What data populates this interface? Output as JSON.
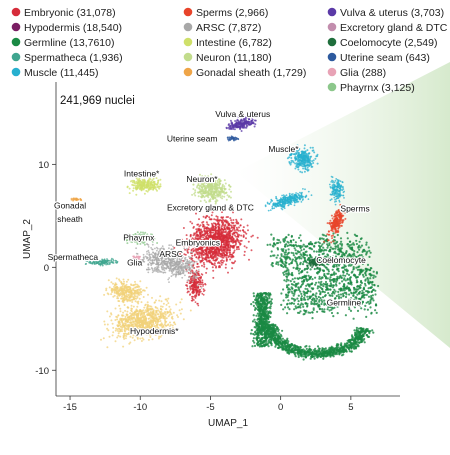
{
  "chart_data": {
    "type": "scatter",
    "xlabel": "UMAP_1",
    "ylabel": "UMAP_2",
    "xlim": [
      -16,
      8.5
    ],
    "ylim": [
      -12.5,
      18
    ],
    "xticks": [
      -15,
      -10,
      -5,
      0,
      5
    ],
    "yticks": [
      -10,
      0,
      10
    ],
    "grid": false,
    "legend_placement": "top",
    "annotation_total": "241,969 nuclei",
    "legend": [
      {
        "label": "Embryonic (31,078)",
        "color": "#d62c3a"
      },
      {
        "label": "Hypodermis (18,540)",
        "color": "#7a1e63"
      },
      {
        "label": "Germline (13,7610)",
        "color": "#1a8a44"
      },
      {
        "label": "Spermatheca (1,936)",
        "color": "#3fa58f"
      },
      {
        "label": "Muscle (11,445)",
        "color": "#27b0cf"
      },
      {
        "label": "Sperms (2,966)",
        "color": "#e8442a"
      },
      {
        "label": "ARSC (7,872)",
        "color": "#a8a8a8"
      },
      {
        "label": "Intestine (6,782)",
        "color": "#cfe06a"
      },
      {
        "label": "Neuron (11,180)",
        "color": "#c2dc8c"
      },
      {
        "label": "Gonadal sheath (1,729)",
        "color": "#efa548"
      },
      {
        "label": "Vulva & uterus (3,703)",
        "color": "#5b3aa7"
      },
      {
        "label": "Excretory gland & DTC (491)",
        "color": "#c28dad"
      },
      {
        "label": "Coelomocyte (2,549)",
        "color": "#1f6e3c"
      },
      {
        "label": "Uterine seam (643)",
        "color": "#2d5a9e"
      },
      {
        "label": "Glia (288)",
        "color": "#e8a3b6"
      },
      {
        "label": "Phayrnx (3,125)",
        "color": "#8cc78b"
      }
    ],
    "cluster_labels": [
      {
        "text": "Vulva & uterus",
        "x": -2.7,
        "y": 14.6
      },
      {
        "text": "Uterine seam",
        "x": -6.3,
        "y": 12.2
      },
      {
        "text": "Muscle*",
        "x": 0.2,
        "y": 11.2
      },
      {
        "text": "Intestine*",
        "x": -9.9,
        "y": 8.8
      },
      {
        "text": "Neuron*",
        "x": -5.6,
        "y": 8.3
      },
      {
        "text": "Gonadal",
        "x": -15.0,
        "y": 5.7
      },
      {
        "text": "sheath",
        "x": -15.0,
        "y": 4.4
      },
      {
        "text": "Excretory gland & DTC",
        "x": -5.0,
        "y": 5.5
      },
      {
        "text": "Sperms",
        "x": 5.3,
        "y": 5.4
      },
      {
        "text": "Phayrnx",
        "x": -10.1,
        "y": 2.6
      },
      {
        "text": "Embryonics",
        "x": -5.9,
        "y": 2.1
      },
      {
        "text": "Spermatheca",
        "x": -14.8,
        "y": 0.7
      },
      {
        "text": "Glia",
        "x": -10.4,
        "y": 0.2
      },
      {
        "text": "ARSC",
        "x": -7.8,
        "y": 1.0
      },
      {
        "text": "Coelomocyte",
        "x": 4.3,
        "y": 0.4
      },
      {
        "text": "Germline",
        "x": 4.5,
        "y": -3.7
      },
      {
        "text": "Hypodermis*",
        "x": -9.0,
        "y": -6.5
      }
    ]
  }
}
